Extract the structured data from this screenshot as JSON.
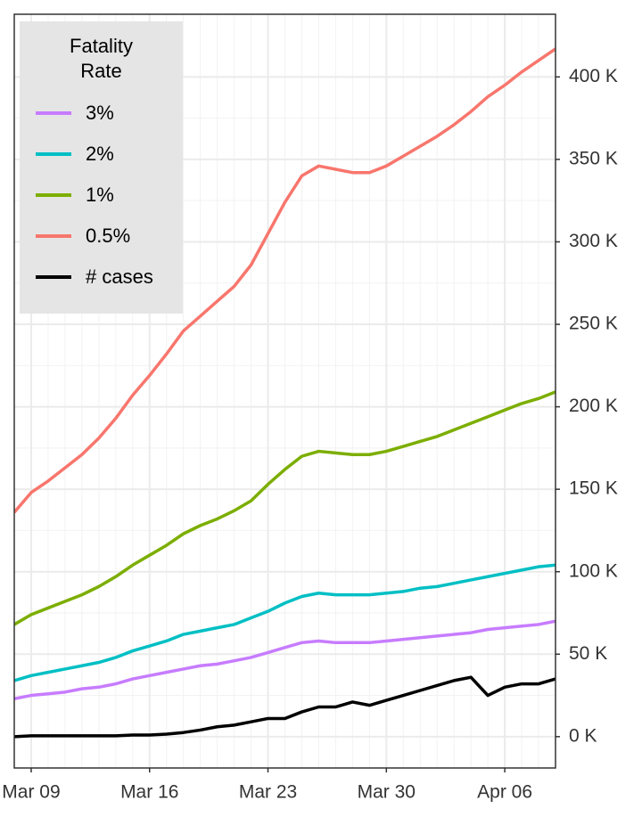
{
  "chart_data": {
    "type": "line",
    "legend_title": "Fatality Rate",
    "legend_position": "top-left",
    "y_axis_side": "right",
    "grid": true,
    "categories": [
      "Mar 08",
      "Mar 09",
      "Mar 10",
      "Mar 11",
      "Mar 12",
      "Mar 13",
      "Mar 14",
      "Mar 15",
      "Mar 16",
      "Mar 17",
      "Mar 18",
      "Mar 19",
      "Mar 20",
      "Mar 21",
      "Mar 22",
      "Mar 23",
      "Mar 24",
      "Mar 25",
      "Mar 26",
      "Mar 27",
      "Mar 28",
      "Mar 29",
      "Mar 30",
      "Mar 31",
      "Apr 01",
      "Apr 02",
      "Apr 03",
      "Apr 04",
      "Apr 05",
      "Apr 06",
      "Apr 07",
      "Apr 08",
      "Apr 09"
    ],
    "xticks": [
      "Mar 09",
      "Mar 16",
      "Mar 23",
      "Mar 30",
      "Apr 06"
    ],
    "ylim": [
      -19000,
      438000
    ],
    "yticks": [
      {
        "value": 0,
        "label": "0 K"
      },
      {
        "value": 50000,
        "label": "50 K"
      },
      {
        "value": 100000,
        "label": "100 K"
      },
      {
        "value": 150000,
        "label": "150 K"
      },
      {
        "value": 200000,
        "label": "200 K"
      },
      {
        "value": 250000,
        "label": "250 K"
      },
      {
        "value": 300000,
        "label": "300 K"
      },
      {
        "value": 350000,
        "label": "350 K"
      },
      {
        "value": 400000,
        "label": "400 K"
      }
    ],
    "series": [
      {
        "name": "3%",
        "color": "#C77CFF",
        "values": [
          23000,
          25000,
          26000,
          27000,
          29000,
          30000,
          32000,
          35000,
          37000,
          39000,
          41000,
          43000,
          44000,
          46000,
          48000,
          51000,
          54000,
          57000,
          58000,
          57000,
          57000,
          57000,
          58000,
          59000,
          60000,
          61000,
          62000,
          63000,
          65000,
          66000,
          67000,
          68000,
          70000
        ]
      },
      {
        "name": "2%",
        "color": "#00BFC4",
        "values": [
          34000,
          37000,
          39000,
          41000,
          43000,
          45000,
          48000,
          52000,
          55000,
          58000,
          62000,
          64000,
          66000,
          68000,
          72000,
          76000,
          81000,
          85000,
          87000,
          86000,
          86000,
          86000,
          87000,
          88000,
          90000,
          91000,
          93000,
          95000,
          97000,
          99000,
          101000,
          103000,
          104000
        ]
      },
      {
        "name": "1%",
        "color": "#7CAE00",
        "values": [
          68000,
          74000,
          78000,
          82000,
          86000,
          91000,
          97000,
          104000,
          110000,
          116000,
          123000,
          128000,
          132000,
          137000,
          143000,
          153000,
          162000,
          170000,
          173000,
          172000,
          171000,
          171000,
          173000,
          176000,
          179000,
          182000,
          186000,
          190000,
          194000,
          198000,
          202000,
          205000,
          209000
        ]
      },
      {
        "name": "0.5%",
        "color": "#F8766D",
        "values": [
          136000,
          148000,
          155000,
          163000,
          171000,
          181000,
          193000,
          207000,
          219000,
          232000,
          246000,
          255000,
          264000,
          273000,
          286000,
          305000,
          324000,
          340000,
          346000,
          344000,
          342000,
          342000,
          346000,
          352000,
          358000,
          364000,
          371000,
          379000,
          388000,
          395000,
          403000,
          410000,
          417000
        ]
      },
      {
        "name": "# cases",
        "color": "#000000",
        "values": [
          0,
          500,
          500,
          500,
          500,
          500,
          500,
          1000,
          1000,
          1500,
          2500,
          4000,
          6000,
          7000,
          9000,
          11000,
          11000,
          15000,
          18000,
          18000,
          21000,
          19000,
          22000,
          25000,
          28000,
          31000,
          34000,
          36000,
          25000,
          30000,
          32000,
          32000,
          35000
        ]
      }
    ]
  }
}
